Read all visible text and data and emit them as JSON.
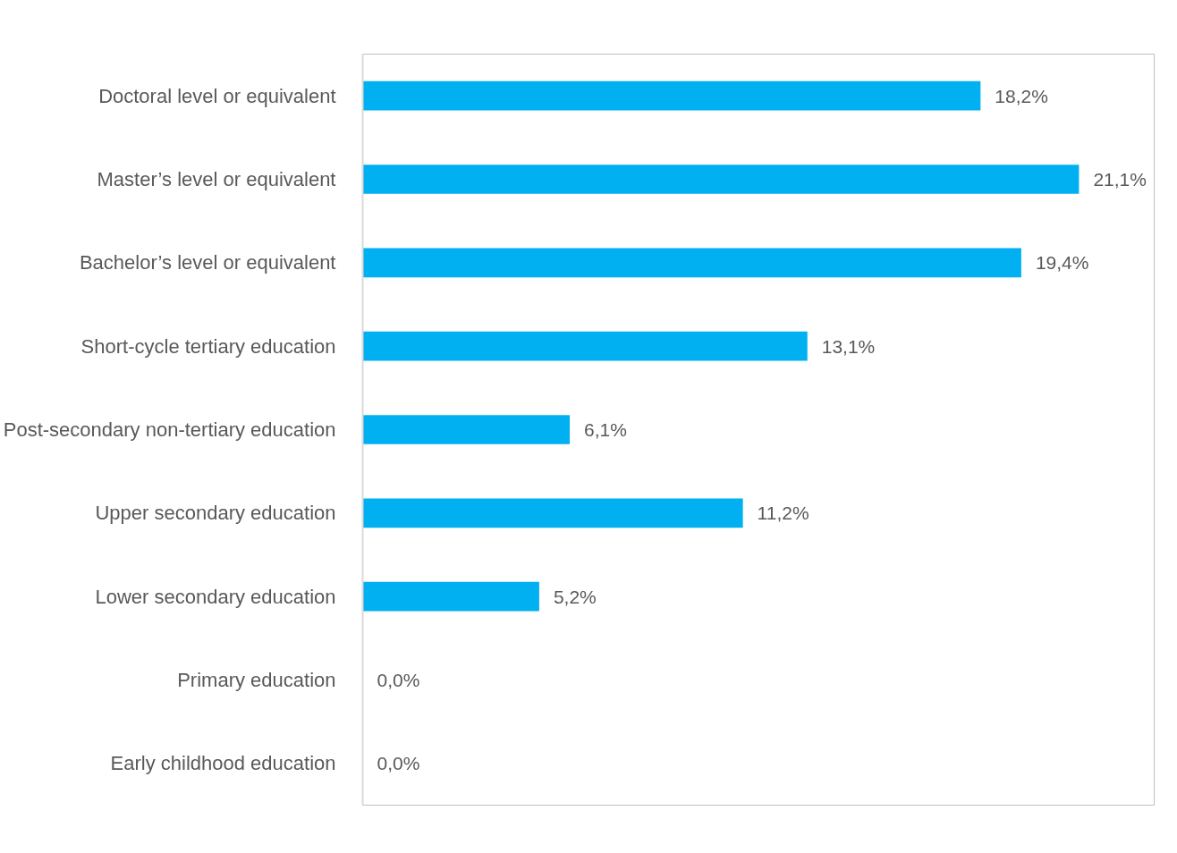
{
  "chart_data": {
    "type": "bar",
    "orientation": "horizontal",
    "color": "#00b0f0",
    "categories": [
      "Doctoral level or equivalent",
      "Master’s level or equivalent",
      "Bachelor’s level or equivalent",
      "Short-cycle tertiary education",
      "Post-secondary non-tertiary education",
      "Upper secondary education",
      "Lower secondary education",
      "Primary education",
      "Early childhood education"
    ],
    "values": [
      18.2,
      21.1,
      19.4,
      13.1,
      6.1,
      11.2,
      5.2,
      0.0,
      0.0
    ],
    "value_labels": [
      "18,2%",
      "21,1%",
      "19,4%",
      "13,1%",
      "6,1%",
      "11,2%",
      "5,2%",
      "0,0%",
      "0,0%"
    ]
  }
}
